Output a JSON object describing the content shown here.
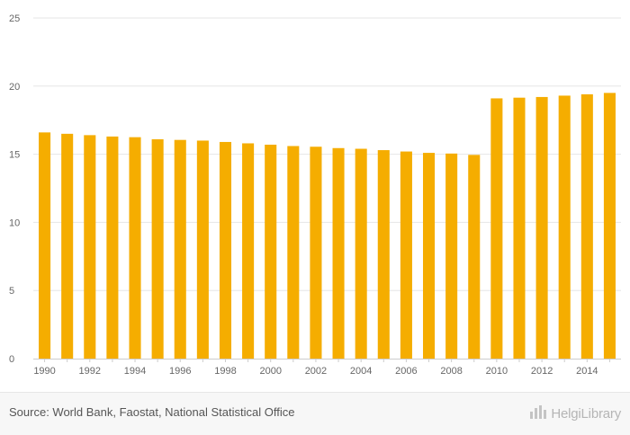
{
  "chart_data": {
    "type": "bar",
    "categories": [
      "1990",
      "1991",
      "1992",
      "1993",
      "1994",
      "1995",
      "1996",
      "1997",
      "1998",
      "1999",
      "2000",
      "2001",
      "2002",
      "2003",
      "2004",
      "2005",
      "2006",
      "2007",
      "2008",
      "2009",
      "2010",
      "2011",
      "2012",
      "2013",
      "2014",
      "2015"
    ],
    "x_tick_labels": [
      "1990",
      "1992",
      "1994",
      "1996",
      "1998",
      "2000",
      "2002",
      "2004",
      "2006",
      "2008",
      "2010",
      "2012",
      "2014"
    ],
    "values": [
      16.6,
      16.5,
      16.4,
      16.3,
      16.25,
      16.1,
      16.05,
      16.0,
      15.9,
      15.8,
      15.7,
      15.6,
      15.55,
      15.45,
      15.4,
      15.3,
      15.2,
      15.1,
      15.05,
      14.95,
      19.1,
      19.15,
      19.2,
      19.3,
      19.4,
      19.5
    ],
    "ylim": [
      0,
      25
    ],
    "y_ticks": [
      0,
      5,
      10,
      15,
      20,
      25
    ],
    "title": "",
    "xlabel": "",
    "ylabel": "",
    "grid": true,
    "bar_color": "#f5ad00"
  },
  "footer": {
    "source": "Source: World Bank, Faostat, National Statistical Office",
    "logo_text": "HelgiLibrary",
    "logo_icon": "helgi-library-logo-icon"
  }
}
